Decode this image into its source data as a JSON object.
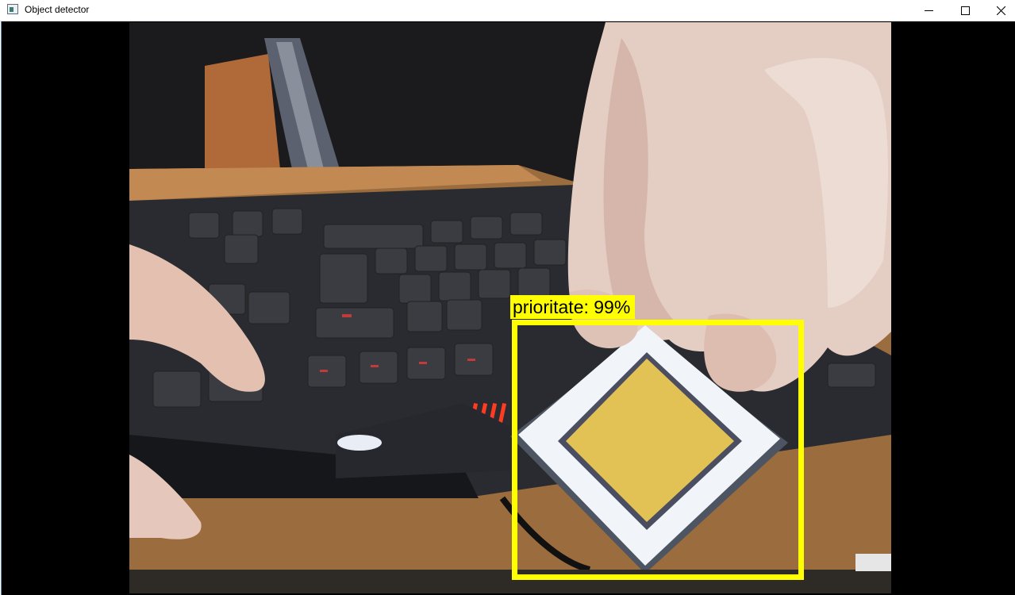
{
  "window": {
    "title": "Object detector",
    "controls": {
      "minimize_icon": "minimize-icon",
      "maximize_icon": "maximize-icon",
      "close_icon": "close-icon"
    }
  },
  "detection": {
    "label": "prioritate: 99%",
    "class_name": "prioritate",
    "confidence_percent": 99,
    "box_color": "#ffff00"
  },
  "colors": {
    "letterbox": "#000000",
    "titlebar": "#ffffff",
    "sign_yellow": "#e2c255"
  }
}
